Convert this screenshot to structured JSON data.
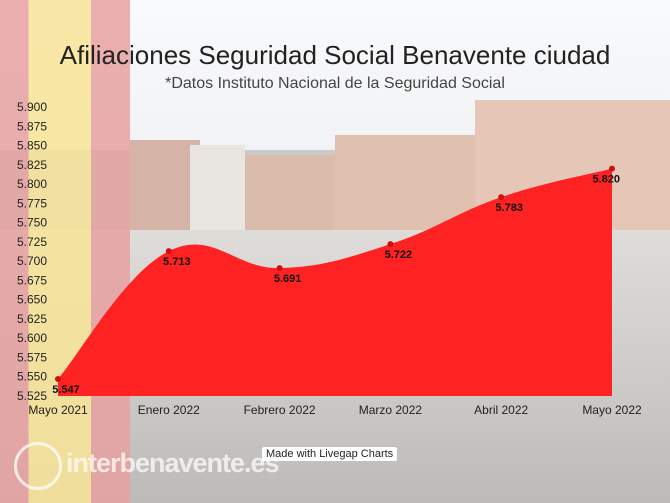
{
  "title": "Afiliaciones Seguridad Social Benavente ciudad",
  "subtitle": "*Datos Instituto Nacional de la Seguridad Social",
  "credit": "Made with Livegap Charts",
  "watermark": "interbenavente.es",
  "colors": {
    "area": "#ff2222",
    "point": "#cc1111",
    "text": "#222222"
  },
  "chart_data": {
    "type": "area",
    "categories": [
      "Mayo 2021",
      "Enero 2022",
      "Febrero 2022",
      "Marzo 2022",
      "Abril 2022",
      "Mayo 2022"
    ],
    "values": [
      5547,
      5713,
      5691,
      5722,
      5783,
      5820
    ],
    "value_labels": [
      "5.547",
      "5.713",
      "5.691",
      "5.722",
      "5.783",
      "5.820"
    ],
    "ylim": [
      5525,
      5900
    ],
    "yticks": [
      "5.525",
      "5.550",
      "5.575",
      "5.600",
      "5.625",
      "5.650",
      "5.675",
      "5.700",
      "5.725",
      "5.750",
      "5.775",
      "5.800",
      "5.825",
      "5.850",
      "5.875",
      "5.900"
    ],
    "xlabel": "",
    "ylabel": "",
    "grid": false
  }
}
